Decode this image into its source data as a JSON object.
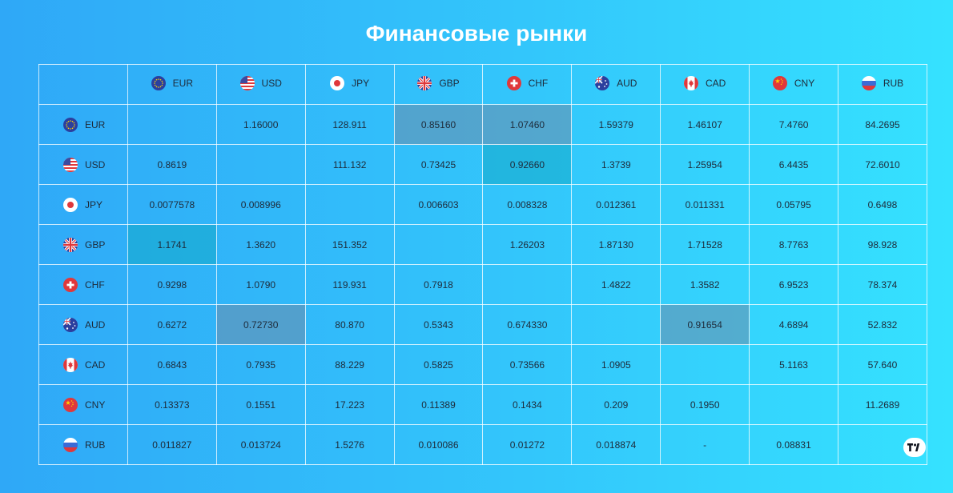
{
  "title": "Финансовые рынки",
  "currencies": [
    "EUR",
    "USD",
    "JPY",
    "GBP",
    "CHF",
    "AUD",
    "CAD",
    "CNY",
    "RUB"
  ],
  "rows": [
    {
      "code": "EUR",
      "cells": [
        {
          "v": ""
        },
        {
          "v": "1.16000"
        },
        {
          "v": "128.911"
        },
        {
          "v": "0.85160",
          "s": "neg"
        },
        {
          "v": "1.07460",
          "s": "neg"
        },
        {
          "v": "1.59379"
        },
        {
          "v": "1.46107"
        },
        {
          "v": "7.4760"
        },
        {
          "v": "84.2695"
        }
      ]
    },
    {
      "code": "USD",
      "cells": [
        {
          "v": "0.8619"
        },
        {
          "v": ""
        },
        {
          "v": "111.132"
        },
        {
          "v": "0.73425"
        },
        {
          "v": "0.92660",
          "s": "pos"
        },
        {
          "v": "1.3739"
        },
        {
          "v": "1.25954"
        },
        {
          "v": "6.4435"
        },
        {
          "v": "72.6010"
        }
      ]
    },
    {
      "code": "JPY",
      "cells": [
        {
          "v": "0.0077578"
        },
        {
          "v": "0.008996"
        },
        {
          "v": ""
        },
        {
          "v": "0.006603"
        },
        {
          "v": "0.008328"
        },
        {
          "v": "0.012361"
        },
        {
          "v": "0.011331"
        },
        {
          "v": "0.05795"
        },
        {
          "v": "0.6498"
        }
      ]
    },
    {
      "code": "GBP",
      "cells": [
        {
          "v": "1.1741",
          "s": "pos"
        },
        {
          "v": "1.3620"
        },
        {
          "v": "151.352"
        },
        {
          "v": ""
        },
        {
          "v": "1.26203"
        },
        {
          "v": "1.87130"
        },
        {
          "v": "1.71528"
        },
        {
          "v": "8.7763"
        },
        {
          "v": "98.928"
        }
      ]
    },
    {
      "code": "CHF",
      "cells": [
        {
          "v": "0.9298"
        },
        {
          "v": "1.0790"
        },
        {
          "v": "119.931"
        },
        {
          "v": "0.7918"
        },
        {
          "v": ""
        },
        {
          "v": "1.4822"
        },
        {
          "v": "1.3582"
        },
        {
          "v": "6.9523"
        },
        {
          "v": "78.374"
        }
      ]
    },
    {
      "code": "AUD",
      "cells": [
        {
          "v": "0.6272"
        },
        {
          "v": "0.72730",
          "s": "neg"
        },
        {
          "v": "80.870"
        },
        {
          "v": "0.5343"
        },
        {
          "v": "0.674330"
        },
        {
          "v": ""
        },
        {
          "v": "0.91654",
          "s": "neg"
        },
        {
          "v": "4.6894"
        },
        {
          "v": "52.832"
        }
      ]
    },
    {
      "code": "CAD",
      "cells": [
        {
          "v": "0.6843"
        },
        {
          "v": "0.7935"
        },
        {
          "v": "88.229"
        },
        {
          "v": "0.5825"
        },
        {
          "v": "0.73566"
        },
        {
          "v": "1.0905"
        },
        {
          "v": ""
        },
        {
          "v": "5.1163"
        },
        {
          "v": "57.640"
        }
      ]
    },
    {
      "code": "CNY",
      "cells": [
        {
          "v": "0.13373"
        },
        {
          "v": "0.1551"
        },
        {
          "v": "17.223"
        },
        {
          "v": "0.11389"
        },
        {
          "v": "0.1434"
        },
        {
          "v": "0.209"
        },
        {
          "v": "0.1950"
        },
        {
          "v": ""
        },
        {
          "v": "11.2689"
        }
      ]
    },
    {
      "code": "RUB",
      "cells": [
        {
          "v": "0.011827"
        },
        {
          "v": "0.013724"
        },
        {
          "v": "1.5276"
        },
        {
          "v": "0.010086"
        },
        {
          "v": "0.01272"
        },
        {
          "v": "0.018874"
        },
        {
          "v": "-"
        },
        {
          "v": "0.08831"
        },
        {
          "v": ""
        }
      ]
    }
  ],
  "colors": {
    "negative": "#ff5a5a",
    "positive": "#18a58a"
  },
  "badge_icon": "tradingview-logo-icon"
}
